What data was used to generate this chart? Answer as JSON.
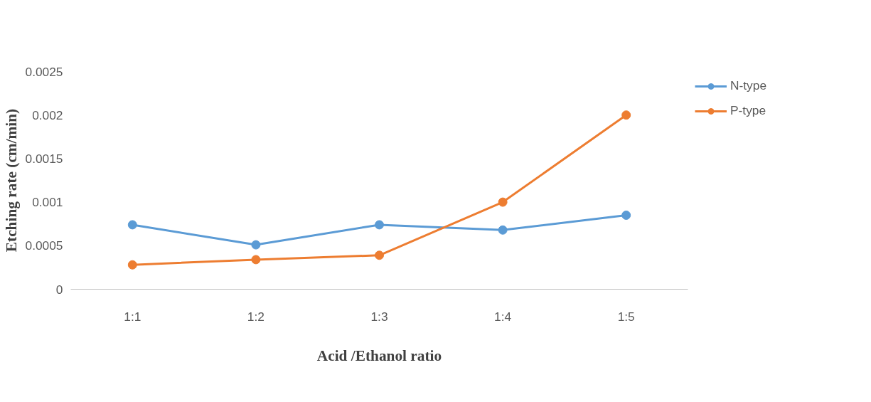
{
  "chart_data": {
    "type": "line",
    "xlabel": "Acid /Ethanol ratio",
    "ylabel": "Etching rate (cm/min)",
    "categories": [
      "1:1",
      "1:2",
      "1:3",
      "1:4",
      "1:5"
    ],
    "series": [
      {
        "name": "N-type",
        "color": "#5b9bd5",
        "values": [
          0.00074,
          0.00051,
          0.00074,
          0.00068,
          0.00085
        ]
      },
      {
        "name": "P-type",
        "color": "#ed7d31",
        "values": [
          0.00028,
          0.00034,
          0.00039,
          0.001,
          0.002
        ]
      }
    ],
    "ylim": [
      0,
      0.0025
    ],
    "yticks": [
      0,
      0.0005,
      0.001,
      0.0015,
      0.002,
      0.0025
    ],
    "grid": false,
    "legend": "top right",
    "marker": "circle",
    "line_style": "solid"
  }
}
